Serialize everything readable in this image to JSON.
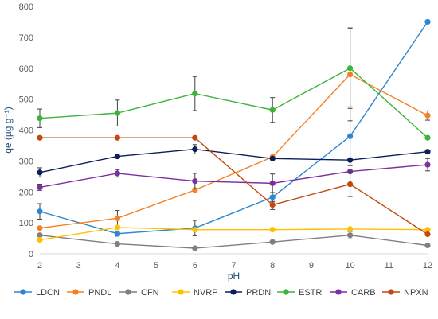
{
  "chart_data": {
    "type": "line",
    "title": "",
    "xlabel": "pH",
    "ylabel": "qe (µg g⁻¹)",
    "x": [
      2,
      4,
      6,
      8,
      10,
      12
    ],
    "xlim": [
      2,
      12
    ],
    "ylim": [
      0,
      800
    ],
    "x_ticks": [
      "2",
      "3",
      "4",
      "5",
      "6",
      "7",
      "8",
      "9",
      "10",
      "11",
      "12"
    ],
    "y_ticks": [
      "0",
      "100",
      "200",
      "300",
      "400",
      "500",
      "600",
      "700",
      "800"
    ],
    "grid": false,
    "legend_position": "bottom",
    "series": [
      {
        "name": "LDCN",
        "color": "#2E86D1",
        "values": [
          137,
          65,
          83,
          183,
          380,
          750
        ],
        "errors": [
          25,
          8,
          25,
          15,
          95,
          0
        ]
      },
      {
        "name": "PNDL",
        "color": "#F58025",
        "values": [
          83,
          115,
          206,
          313,
          580,
          447
        ],
        "errors": [
          0,
          25,
          0,
          0,
          150,
          15
        ]
      },
      {
        "name": "CFN",
        "color": "#7F7F7F",
        "values": [
          60,
          32,
          18,
          38,
          60,
          27
        ],
        "errors": [
          0,
          0,
          0,
          0,
          12,
          0
        ]
      },
      {
        "name": "NVRP",
        "color": "#FFC000",
        "values": [
          45,
          85,
          78,
          78,
          80,
          78
        ],
        "errors": [
          0,
          0,
          0,
          0,
          0,
          0
        ]
      },
      {
        "name": "PRDN",
        "color": "#0B1F5B",
        "values": [
          263,
          315,
          338,
          308,
          303,
          330
        ],
        "errors": [
          15,
          0,
          15,
          0,
          0,
          0
        ]
      },
      {
        "name": "ESTR",
        "color": "#3CB43C",
        "values": [
          438,
          455,
          518,
          465,
          600,
          375
        ],
        "errors": [
          30,
          42,
          55,
          40,
          130,
          0
        ]
      },
      {
        "name": "CARB",
        "color": "#7B2FA0",
        "values": [
          215,
          260,
          235,
          228,
          266,
          288
        ],
        "errors": [
          10,
          12,
          25,
          30,
          0,
          20
        ]
      },
      {
        "name": "NPXN",
        "color": "#C04A0F",
        "values": [
          375,
          375,
          375,
          158,
          225,
          63
        ],
        "errors": [
          0,
          0,
          0,
          15,
          40,
          0
        ]
      }
    ]
  }
}
